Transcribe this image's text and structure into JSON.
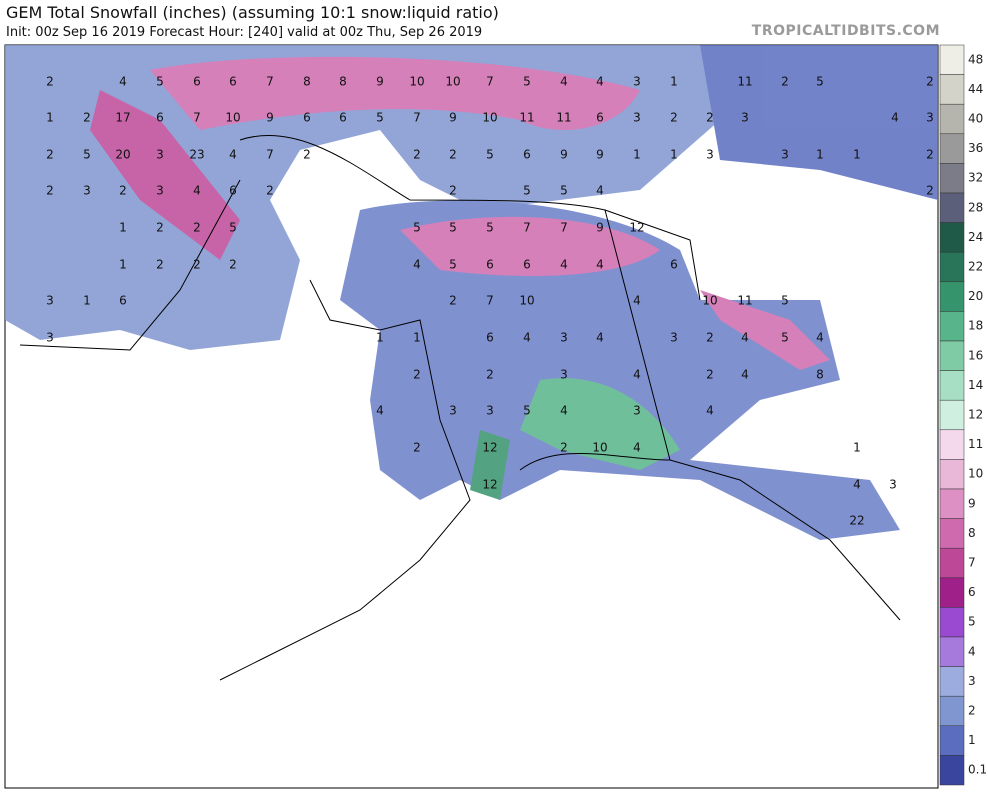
{
  "header": {
    "title": "GEM Total Snowfall (inches) (assuming 10:1 snow:liquid ratio)",
    "subtitle": "Init: 00z Sep 16 2019   Forecast Hour: [240]   valid at 00z Thu, Sep 26 2019",
    "watermark": "TROPICALTIDBITS.COM"
  },
  "legend": [
    {
      "value": 48,
      "color": "#efeee6"
    },
    {
      "value": 44,
      "color": "#d4d3ca"
    },
    {
      "value": 40,
      "color": "#b6b5ad"
    },
    {
      "value": 36,
      "color": "#9a9a9a"
    },
    {
      "value": 32,
      "color": "#7b7c88"
    },
    {
      "value": 28,
      "color": "#5c5f7a"
    },
    {
      "value": 24,
      "color": "#1f5a48"
    },
    {
      "value": 22,
      "color": "#287559"
    },
    {
      "value": 20,
      "color": "#36946d"
    },
    {
      "value": 18,
      "color": "#58b48a"
    },
    {
      "value": 16,
      "color": "#7ecba5"
    },
    {
      "value": 14,
      "color": "#a6dfc3"
    },
    {
      "value": 12,
      "color": "#cff0e0"
    },
    {
      "value": 11,
      "color": "#f4d9ec"
    },
    {
      "value": 10,
      "color": "#e9b8d8"
    },
    {
      "value": 9,
      "color": "#dd90c4"
    },
    {
      "value": 8,
      "color": "#cf6aae"
    },
    {
      "value": 7,
      "color": "#be4898"
    },
    {
      "value": 6,
      "color": "#9e2088"
    },
    {
      "value": 5,
      "color": "#9a4ad0"
    },
    {
      "value": 4,
      "color": "#a57adc"
    },
    {
      "value": 3,
      "color": "#9cacdf"
    },
    {
      "value": 2,
      "color": "#7f96d0"
    },
    {
      "value": 1,
      "color": "#5a6dbf"
    },
    {
      "value": 0.1,
      "color": "#3a459e"
    }
  ],
  "map_labels": [
    2,
    4,
    5,
    6,
    6,
    7,
    8,
    8,
    9,
    10,
    10,
    7,
    5,
    4,
    4,
    3,
    1,
    11,
    2,
    5,
    2,
    1,
    2,
    17,
    6,
    7,
    10,
    9,
    6,
    6,
    5,
    7,
    9,
    10,
    11,
    11,
    6,
    3,
    2,
    2,
    3,
    4,
    3,
    2,
    5,
    20,
    3,
    23,
    4,
    7,
    2,
    2,
    2,
    5,
    6,
    9,
    9,
    1,
    1,
    3,
    3,
    1,
    1,
    2,
    2,
    3,
    2,
    3,
    4,
    6,
    2,
    2,
    5,
    5,
    4,
    2,
    1,
    2,
    2,
    5,
    5,
    5,
    5,
    7,
    7,
    9,
    12,
    1,
    2,
    2,
    2,
    4,
    5,
    6,
    6,
    4,
    4,
    6,
    3,
    1,
    6,
    2,
    7,
    10,
    4,
    10,
    11,
    5,
    3,
    1,
    1,
    6,
    4,
    3,
    4,
    3,
    2,
    4,
    5,
    4,
    2,
    2,
    3,
    4,
    2,
    4,
    8,
    4,
    3,
    3,
    5,
    4,
    3,
    4,
    2,
    12,
    2,
    10,
    4,
    1,
    12,
    4,
    3,
    22
  ]
}
